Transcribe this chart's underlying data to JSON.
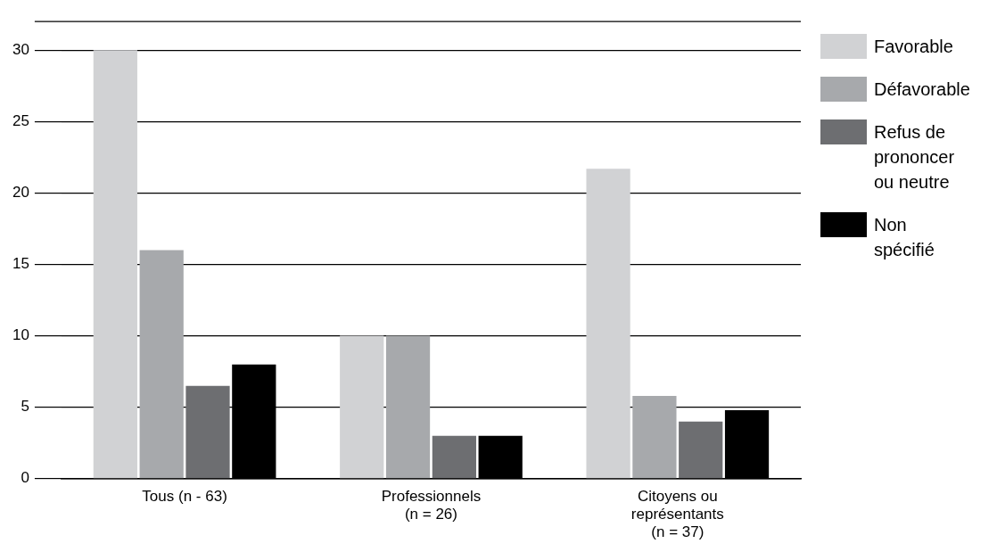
{
  "chart_data": {
    "type": "bar",
    "categories": [
      "Tous (n - 63)",
      "Professionnels (n = 26)",
      "Citoyens ou représentants (n = 37)"
    ],
    "series": [
      {
        "name": "Favorable",
        "color": "#d1d2d4",
        "values": [
          30,
          10,
          21.7
        ]
      },
      {
        "name": "Défavorable",
        "color": "#a7a9ac",
        "values": [
          16,
          10,
          5.8
        ]
      },
      {
        "name": "Refus de prononcer ou neutre",
        "color": "#6d6e71",
        "values": [
          6.5,
          3,
          4
        ]
      },
      {
        "name": "Non spécifié",
        "color": "#000000",
        "values": [
          8,
          3,
          4.8
        ]
      }
    ],
    "ylim": [
      0,
      32
    ],
    "yticks": [
      0,
      5,
      10,
      15,
      20,
      25,
      30
    ],
    "grid": "y",
    "legend": "right"
  }
}
